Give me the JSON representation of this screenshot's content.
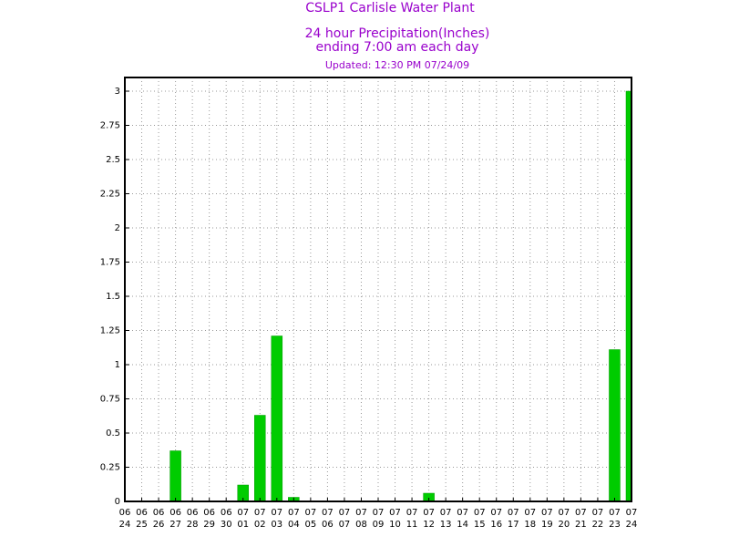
{
  "chart_data": {
    "type": "bar",
    "title": "CSLP1 Carlisle Water Plant",
    "subtitle": [
      "24 hour Precipitation(Inches)",
      "ending 7:00 am each day"
    ],
    "updated": "Updated: 12:30 PM 07/24/09",
    "categories": [
      [
        "06",
        "24"
      ],
      [
        "06",
        "25"
      ],
      [
        "06",
        "26"
      ],
      [
        "06",
        "27"
      ],
      [
        "06",
        "28"
      ],
      [
        "06",
        "29"
      ],
      [
        "06",
        "30"
      ],
      [
        "07",
        "01"
      ],
      [
        "07",
        "02"
      ],
      [
        "07",
        "03"
      ],
      [
        "07",
        "04"
      ],
      [
        "07",
        "05"
      ],
      [
        "07",
        "06"
      ],
      [
        "07",
        "07"
      ],
      [
        "07",
        "08"
      ],
      [
        "07",
        "09"
      ],
      [
        "07",
        "10"
      ],
      [
        "07",
        "11"
      ],
      [
        "07",
        "12"
      ],
      [
        "07",
        "13"
      ],
      [
        "07",
        "14"
      ],
      [
        "07",
        "15"
      ],
      [
        "07",
        "16"
      ],
      [
        "07",
        "17"
      ],
      [
        "07",
        "18"
      ],
      [
        "07",
        "19"
      ],
      [
        "07",
        "20"
      ],
      [
        "07",
        "21"
      ],
      [
        "07",
        "22"
      ],
      [
        "07",
        "23"
      ],
      [
        "07",
        "24"
      ]
    ],
    "values": [
      0,
      0,
      0,
      0.37,
      0,
      0,
      0,
      0.12,
      0.63,
      1.21,
      0.03,
      0,
      0,
      0,
      0,
      0,
      0,
      0,
      0.06,
      0,
      0,
      0,
      0,
      0,
      0,
      0,
      0,
      0,
      0,
      1.11,
      3.0
    ],
    "color": "#00cc00",
    "ylim": [
      0,
      3.1
    ],
    "yticks": [
      0,
      0.25,
      0.5,
      0.75,
      1,
      1.25,
      1.5,
      1.75,
      2,
      2.25,
      2.5,
      2.75,
      3
    ],
    "grid": true
  }
}
